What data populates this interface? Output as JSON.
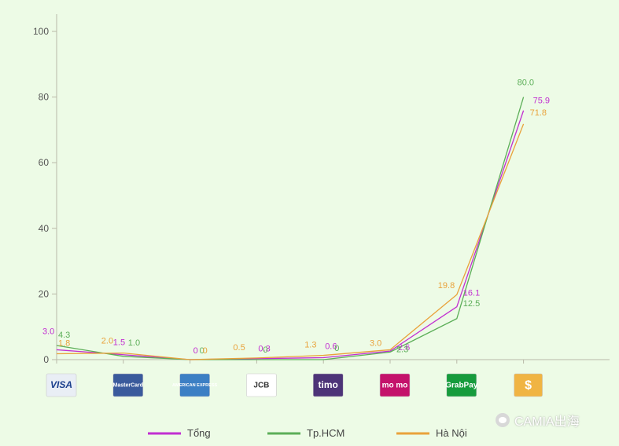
{
  "chart_data": {
    "type": "line",
    "categories": [
      "VISA",
      "MasterCard",
      "American Express",
      "JCB",
      "timo",
      "MoMo",
      "GrabPay",
      "$"
    ],
    "ylim": [
      0,
      100
    ],
    "yticks": [
      0,
      20,
      40,
      60,
      80,
      100
    ],
    "series": [
      {
        "name": "Tổng",
        "color": "#c12fd1",
        "values": [
          3.0,
          1.5,
          0,
          0.3,
          0.6,
          2.6,
          16.1,
          75.9
        ]
      },
      {
        "name": "Tp.HCM",
        "color": "#5cae58",
        "values": [
          4.3,
          1.0,
          0,
          0,
          0,
          2.3,
          12.5,
          80.0
        ]
      },
      {
        "name": "Hà Nội",
        "color": "#e9a23b",
        "values": [
          1.8,
          2.0,
          0,
          0.5,
          1.3,
          3.0,
          19.8,
          71.8
        ]
      }
    ],
    "data_labels": [
      [
        "3.0",
        "1.5",
        "0",
        "0.3",
        "0.6",
        "2.6",
        "16.1",
        "75.9"
      ],
      [
        "4.3",
        "1.0",
        "0",
        "0",
        "0",
        "2.3",
        "12.5",
        "80.0"
      ],
      [
        "1.8",
        "2.0",
        "0",
        "0.5",
        "1.3",
        "3.0",
        "19.8",
        "71.8"
      ]
    ],
    "grid": false,
    "legend_position": "bottom"
  },
  "logos": [
    {
      "name": "visa",
      "text": "VISA",
      "bg": "#e9eef5",
      "fg": "#1a3e8c"
    },
    {
      "name": "mastercard",
      "text": "MasterCard",
      "bg": "#3a5a9c",
      "fg": "#ffffff"
    },
    {
      "name": "amex",
      "text": "AMERICAN EXPRESS",
      "bg": "#3c7fc4",
      "fg": "#ffffff"
    },
    {
      "name": "jcb",
      "text": "JCB",
      "bg": "#ffffff",
      "fg": "#333333"
    },
    {
      "name": "timo",
      "text": "timo",
      "bg": "#4d3478",
      "fg": "#ffffff"
    },
    {
      "name": "momo",
      "text": "mo mo",
      "bg": "#c4126b",
      "fg": "#ffffff"
    },
    {
      "name": "grabpay",
      "text": "GrabPay",
      "bg": "#169b3c",
      "fg": "#ffffff"
    },
    {
      "name": "cash",
      "text": "$",
      "bg": "#f0b443",
      "fg": "#ffffff"
    }
  ],
  "watermark": {
    "text": "CAMIA出海"
  }
}
